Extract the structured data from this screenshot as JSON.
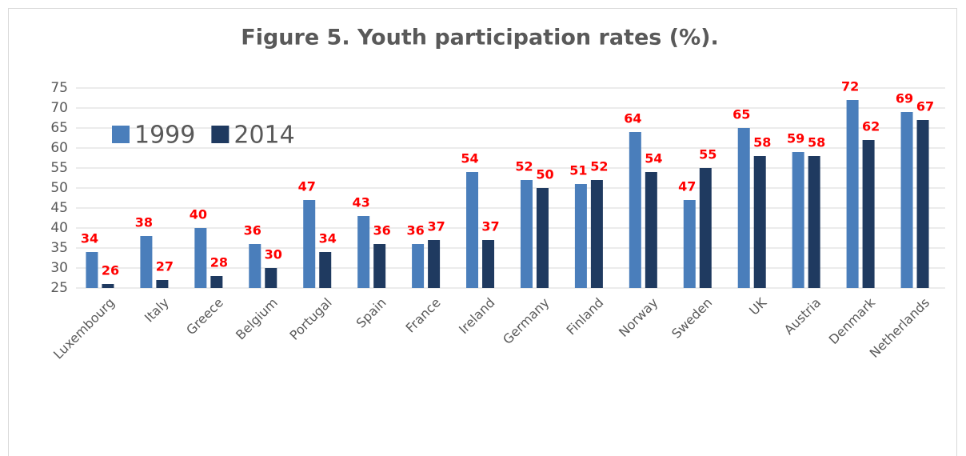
{
  "chart_data": {
    "type": "bar",
    "title": "Figure 5. Youth participation rates (%).",
    "categories": [
      "Luxembourg",
      "Italy",
      "Greece",
      "Belgium",
      "Portugal",
      "Spain",
      "France",
      "Ireland",
      "Germany",
      "Finland",
      "Norway",
      "Sweden",
      "UK",
      "Austria",
      "Denmark",
      "Netherlands"
    ],
    "series": [
      {
        "name": "1999",
        "color": "#4a7ebb",
        "values": [
          34,
          38,
          40,
          36,
          47,
          43,
          36,
          54,
          52,
          51,
          64,
          47,
          65,
          59,
          72,
          69
        ]
      },
      {
        "name": "2014",
        "color": "#1f3a60",
        "values": [
          26,
          27,
          28,
          30,
          34,
          36,
          37,
          37,
          50,
          52,
          54,
          55,
          58,
          58,
          62,
          67
        ]
      }
    ],
    "ylim": [
      25,
      75
    ],
    "yticks": [
      25,
      30,
      35,
      40,
      45,
      50,
      55,
      60,
      65,
      70,
      75
    ],
    "grid": true,
    "legend_position": "upper left",
    "label_color": "#ff0000"
  }
}
